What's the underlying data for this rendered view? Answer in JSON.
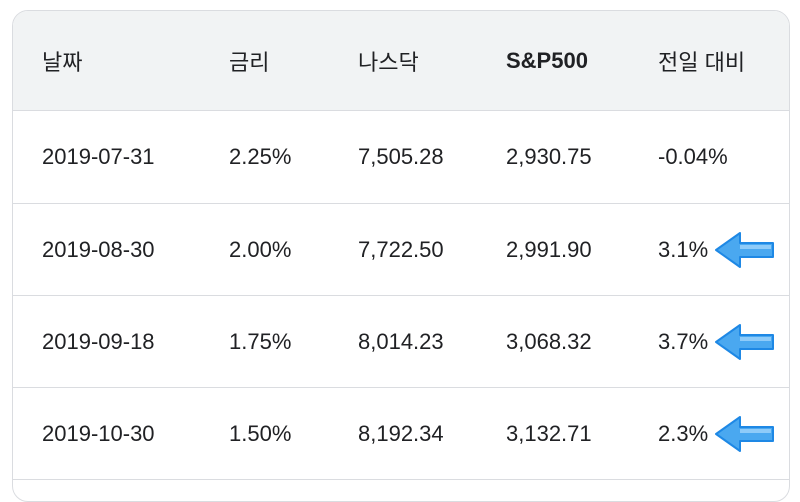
{
  "table": {
    "headers": [
      "날짜",
      "금리",
      "나스닥",
      "S&P500",
      "전일 대비"
    ],
    "rows": [
      {
        "date": "2019-07-31",
        "rate": "2.25%",
        "nasdaq": "7,505.28",
        "sp500": "2,930.75",
        "change": "-0.04%",
        "arrow": false
      },
      {
        "date": "2019-08-30",
        "rate": "2.00%",
        "nasdaq": "7,722.50",
        "sp500": "2,991.90",
        "change": "3.1%",
        "arrow": true
      },
      {
        "date": "2019-09-18",
        "rate": "1.75%",
        "nasdaq": "8,014.23",
        "sp500": "3,068.32",
        "change": "3.7%",
        "arrow": true
      },
      {
        "date": "2019-10-30",
        "rate": "1.50%",
        "nasdaq": "8,192.34",
        "sp500": "3,132.71",
        "change": "2.3%",
        "arrow": true
      }
    ]
  },
  "icons": {
    "row_marker": "left-arrow-icon"
  },
  "colors": {
    "arrow_fill": "#4aa8f0",
    "arrow_edge": "#1e88e5",
    "header_bg": "#f1f3f4",
    "border": "#dadce0"
  }
}
